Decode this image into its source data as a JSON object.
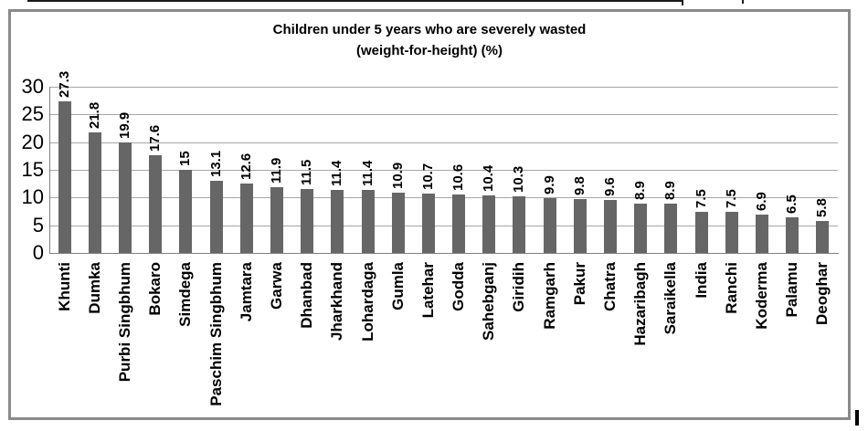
{
  "chart_data": {
    "type": "bar",
    "title_lines": [
      "Children under 5 years who are severely wasted",
      "(weight-for-height) (%)"
    ],
    "categories": [
      "Khunti",
      "Dumka",
      "Purbi Singbhum",
      "Bokaro",
      "Simdega",
      "Paschim Singbhum",
      "Jamtara",
      "Garwa",
      "Dhanbad",
      "Jharkhand",
      "Lohardaga",
      "Gumla",
      "Latehar",
      "Godda",
      "Sahebganj",
      "Giridih",
      "Ramgarh",
      "Pakur",
      "Chatra",
      "Hazaribagh",
      "Saraikella",
      "India",
      "Ranchi",
      "Koderma",
      "Palamu",
      "Deoghar"
    ],
    "values": [
      27.3,
      21.8,
      19.9,
      17.6,
      15,
      13.1,
      12.6,
      11.9,
      11.5,
      11.4,
      11.4,
      10.9,
      10.7,
      10.6,
      10.4,
      10.3,
      9.9,
      9.8,
      9.6,
      8.9,
      8.9,
      7.5,
      7.5,
      6.9,
      6.5,
      5.8
    ],
    "xlabel": "",
    "ylabel": "",
    "ylim": [
      0,
      30
    ],
    "yticks": [
      0,
      5,
      10,
      15,
      20,
      25,
      30
    ],
    "grid": true,
    "legend": "none",
    "value_labels_rotated": true,
    "category_labels_rotated": true
  },
  "colors": {
    "bar": "#666666",
    "gridline": "#a6a6a6",
    "axis": "#808080",
    "frame_border": "#8a8a8a",
    "text": "#000000",
    "background": "#ffffff"
  }
}
